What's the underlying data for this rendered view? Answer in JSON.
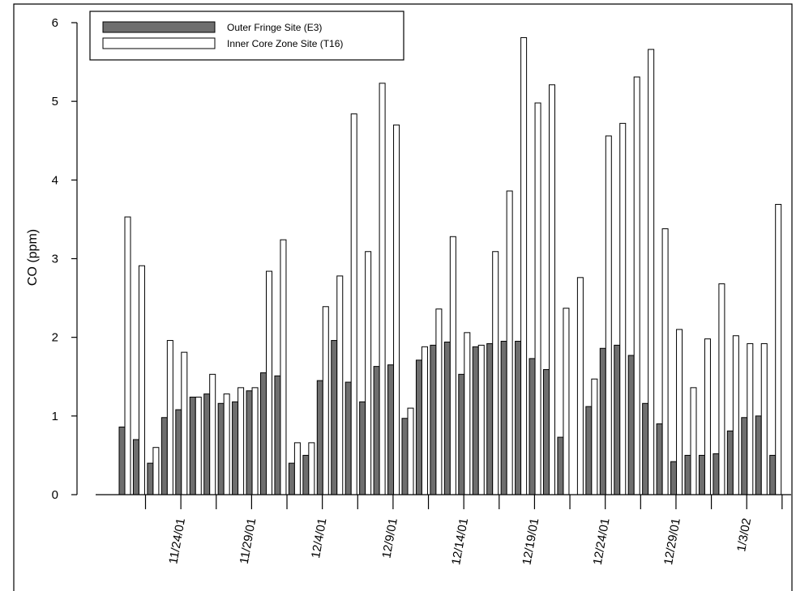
{
  "chart_data": {
    "type": "bar",
    "title": "",
    "xlabel": "",
    "ylabel": "CO (ppm)",
    "ylim": [
      0,
      6
    ],
    "yticks": [
      0,
      1,
      2,
      3,
      4,
      5,
      6
    ],
    "x_tick_labels": [
      "11/24/01",
      "11/29/01",
      "12/4/01",
      "12/9/01",
      "12/14/01",
      "12/19/01",
      "12/24/01",
      "12/29/01",
      "1/3/02"
    ],
    "grid": false,
    "legend_position": "top-left",
    "series": [
      {
        "name": "Outer Fringe Site (E3)",
        "color": "#6e6e6e",
        "values": [
          0.86,
          0.7,
          0.4,
          0.98,
          1.08,
          1.24,
          1.28,
          1.16,
          1.18,
          1.32,
          1.55,
          1.51,
          0.4,
          0.5,
          1.45,
          1.96,
          1.43,
          1.18,
          1.63,
          1.65,
          0.97,
          1.71,
          1.9,
          1.94,
          1.53,
          1.88,
          1.92,
          1.95,
          1.95,
          1.73,
          1.59,
          0.73,
          null,
          1.12,
          1.86,
          1.9,
          1.77,
          1.16,
          0.9,
          0.42,
          0.5,
          0.5,
          0.52,
          0.81,
          0.98,
          1.0,
          0.5
        ]
      },
      {
        "name": "Inner Core Zone Site (T16)",
        "color": "#ffffff",
        "values": [
          3.53,
          2.91,
          0.6,
          1.96,
          1.81,
          1.24,
          1.53,
          1.28,
          1.36,
          1.36,
          2.84,
          3.24,
          0.66,
          0.66,
          2.39,
          2.78,
          4.84,
          3.09,
          5.23,
          4.7,
          1.1,
          1.88,
          2.36,
          3.28,
          2.06,
          1.9,
          3.09,
          3.86,
          5.81,
          4.98,
          5.21,
          2.37,
          2.76,
          1.47,
          4.56,
          4.72,
          5.31,
          5.66,
          3.38,
          2.1,
          1.36,
          1.98,
          2.68,
          2.02,
          1.92,
          1.92,
          3.69
        ]
      }
    ]
  }
}
